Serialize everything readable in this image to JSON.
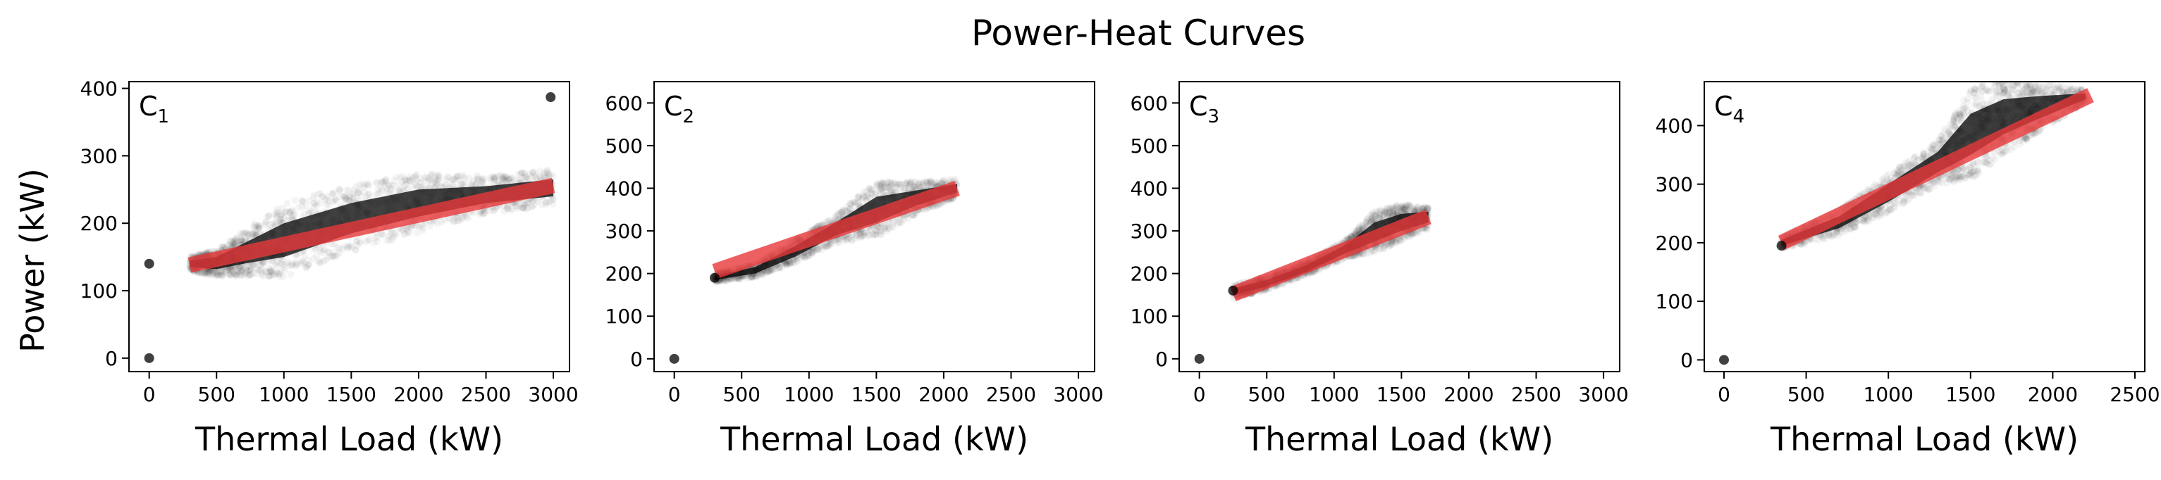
{
  "figure": {
    "title": "Power-Heat Curves",
    "ylabel": "Power (kW)"
  },
  "chart_data": [
    {
      "type": "scatter",
      "panel_label": "C",
      "panel_subscript": "1",
      "xlabel": "Thermal Load (kW)",
      "ylabel": "Power (kW)",
      "xlim": [
        -150,
        3120
      ],
      "ylim": [
        -20,
        410
      ],
      "xticks": [
        0,
        500,
        1000,
        1500,
        2000,
        2500,
        3000
      ],
      "yticks": [
        0,
        100,
        200,
        300,
        400
      ],
      "point_color": "#000000",
      "fit_color": "#e8383a",
      "scatter_cloud": {
        "x": [
          300,
          500,
          700,
          1000,
          1500,
          2000,
          2500,
          3000
        ],
        "y_low": [
          135,
          132,
          140,
          150,
          185,
          210,
          230,
          240
        ],
        "y_high": [
          145,
          150,
          170,
          200,
          230,
          250,
          255,
          265
        ]
      },
      "outliers": [
        {
          "x": 0,
          "y": 0
        },
        {
          "x": 0,
          "y": 140
        },
        {
          "x": 2980,
          "y": 387
        }
      ],
      "fit_line": {
        "x": [
          300,
          3000
        ],
        "y": [
          138,
          256
        ]
      }
    },
    {
      "type": "scatter",
      "panel_label": "C",
      "panel_subscript": "2",
      "xlabel": "Thermal Load (kW)",
      "ylabel": "",
      "xlim": [
        -150,
        3120
      ],
      "ylim": [
        -30,
        650
      ],
      "xticks": [
        0,
        500,
        1000,
        1500,
        2000,
        2500,
        3000
      ],
      "yticks": [
        0,
        100,
        200,
        300,
        400,
        500,
        600
      ],
      "point_color": "#000000",
      "fit_color": "#e8383a",
      "scatter_cloud": {
        "x": [
          300,
          600,
          900,
          1200,
          1500,
          1800,
          2100
        ],
        "y_low": [
          185,
          200,
          240,
          290,
          320,
          360,
          390
        ],
        "y_high": [
          195,
          215,
          265,
          320,
          380,
          395,
          410
        ]
      },
      "outliers": [
        {
          "x": 0,
          "y": 0
        },
        {
          "x": 300,
          "y": 190
        }
      ],
      "fit_line": {
        "x": [
          300,
          2100
        ],
        "y": [
          205,
          400
        ]
      }
    },
    {
      "type": "scatter",
      "panel_label": "C",
      "panel_subscript": "3",
      "xlabel": "Thermal Load (kW)",
      "ylabel": "",
      "xlim": [
        -150,
        3120
      ],
      "ylim": [
        -30,
        650
      ],
      "xticks": [
        0,
        500,
        1000,
        1500,
        2000,
        2500,
        3000
      ],
      "yticks": [
        0,
        100,
        200,
        300,
        400,
        500,
        600
      ],
      "point_color": "#000000",
      "fit_color": "#e8383a",
      "scatter_cloud": {
        "x": [
          250,
          500,
          800,
          1100,
          1300,
          1500,
          1700
        ],
        "y_low": [
          150,
          170,
          205,
          250,
          275,
          300,
          320
        ],
        "y_high": [
          165,
          185,
          220,
          270,
          320,
          340,
          345
        ]
      },
      "outliers": [
        {
          "x": 0,
          "y": 0
        },
        {
          "x": 250,
          "y": 160
        }
      ],
      "fit_line": {
        "x": [
          250,
          1700
        ],
        "y": [
          152,
          333
        ]
      }
    },
    {
      "type": "scatter",
      "panel_label": "C",
      "panel_subscript": "4",
      "xlabel": "Thermal Load (kW)",
      "ylabel": "",
      "xlim": [
        -120,
        2560
      ],
      "ylim": [
        -20,
        475
      ],
      "xticks": [
        0,
        500,
        1000,
        1500,
        2000,
        2500
      ],
      "yticks": [
        0,
        100,
        200,
        300,
        400
      ],
      "point_color": "#000000",
      "fit_color": "#e8383a",
      "scatter_cloud": {
        "x": [
          350,
          700,
          1000,
          1300,
          1500,
          1700,
          1900,
          2200
        ],
        "y_low": [
          195,
          225,
          270,
          320,
          350,
          385,
          410,
          445
        ],
        "y_high": [
          205,
          245,
          300,
          355,
          420,
          445,
          450,
          455
        ]
      },
      "outliers": [
        {
          "x": 0,
          "y": 0
        },
        {
          "x": 350,
          "y": 195
        }
      ],
      "fit_line": {
        "x": [
          350,
          2230
        ],
        "y": [
          200,
          452
        ]
      }
    }
  ]
}
